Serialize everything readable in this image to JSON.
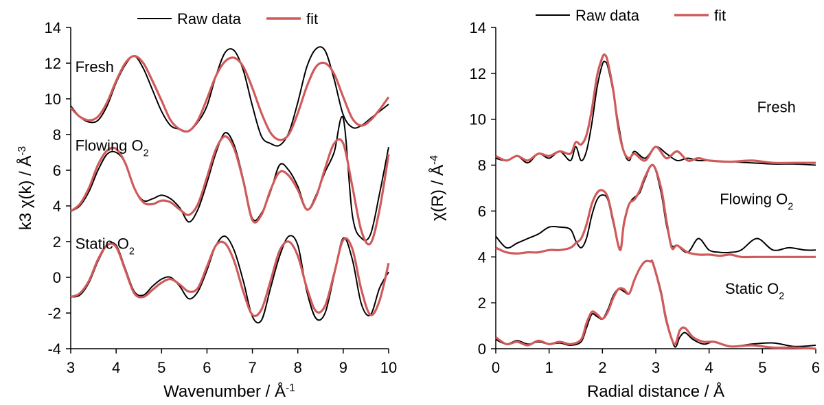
{
  "chart_data": [
    {
      "type": "line",
      "panel": "k-space",
      "xlabel": "Wavenumber / Å",
      "xlabel_sup": "-1",
      "ylabel": "k3 χ(k) / Å",
      "ylabel_sup": "-3",
      "xlim": [
        3,
        10
      ],
      "ylim": [
        -4,
        14
      ],
      "xticks": [
        3,
        4,
        5,
        6,
        7,
        8,
        9,
        10
      ],
      "yticks": [
        -4,
        -2,
        0,
        2,
        4,
        6,
        8,
        10,
        12,
        14
      ],
      "grid": false,
      "legend": {
        "placement": "top-center",
        "entries": [
          "Raw data",
          "fit"
        ]
      },
      "colors": {
        "raw": "#000000",
        "fit": "#d05a5a"
      },
      "annotations": [
        {
          "text": "Fresh",
          "sub": "",
          "x": 3.1,
          "y": 11.5
        },
        {
          "text": "Flowing O",
          "sub": "2",
          "x": 3.1,
          "y": 7.1
        },
        {
          "text": "Static O",
          "sub": "2",
          "x": 3.1,
          "y": 1.6
        }
      ],
      "series": [
        {
          "name": "Raw data",
          "group": "Fresh",
          "x": [
            3.0,
            3.2,
            3.4,
            3.6,
            3.8,
            4.0,
            4.2,
            4.4,
            4.6,
            4.8,
            5.0,
            5.2,
            5.4,
            5.6,
            5.8,
            6.0,
            6.2,
            6.4,
            6.6,
            6.8,
            7.0,
            7.2,
            7.4,
            7.6,
            7.8,
            8.0,
            8.2,
            8.4,
            8.6,
            8.8,
            9.0,
            9.2,
            9.4,
            9.6,
            9.8,
            10.0
          ],
          "y": [
            9.6,
            9.0,
            8.7,
            8.8,
            9.6,
            10.9,
            11.9,
            12.4,
            11.7,
            10.5,
            9.3,
            8.5,
            8.3,
            8.2,
            8.7,
            9.6,
            11.3,
            12.6,
            12.7,
            11.6,
            9.6,
            7.9,
            7.5,
            7.4,
            8.1,
            9.8,
            11.8,
            12.8,
            12.7,
            11.1,
            9.1,
            8.4,
            8.5,
            8.9,
            9.3,
            9.7
          ]
        },
        {
          "name": "fit",
          "group": "Fresh",
          "x": [
            3.0,
            3.2,
            3.4,
            3.6,
            3.8,
            4.0,
            4.2,
            4.4,
            4.6,
            4.8,
            5.0,
            5.2,
            5.4,
            5.6,
            5.8,
            6.0,
            6.2,
            6.4,
            6.6,
            6.8,
            7.0,
            7.2,
            7.4,
            7.6,
            7.8,
            8.0,
            8.2,
            8.4,
            8.6,
            8.8,
            9.0,
            9.2,
            9.4,
            9.6,
            9.8,
            10.0
          ],
          "y": [
            9.5,
            9.0,
            8.8,
            9.0,
            9.8,
            11.0,
            12.0,
            12.4,
            12.0,
            11.0,
            9.9,
            8.8,
            8.3,
            8.2,
            8.8,
            10.0,
            11.3,
            12.1,
            12.3,
            11.8,
            10.6,
            9.2,
            8.1,
            7.7,
            8.0,
            9.2,
            10.7,
            11.8,
            12.0,
            11.4,
            10.1,
            8.9,
            8.5,
            8.8,
            9.4,
            10.1
          ]
        },
        {
          "name": "Raw data",
          "group": "Flowing O2",
          "x": [
            3.0,
            3.2,
            3.4,
            3.6,
            3.8,
            4.0,
            4.2,
            4.4,
            4.6,
            4.8,
            5.0,
            5.2,
            5.4,
            5.6,
            5.8,
            6.0,
            6.2,
            6.4,
            6.6,
            6.8,
            7.0,
            7.2,
            7.4,
            7.6,
            7.8,
            8.0,
            8.2,
            8.4,
            8.6,
            8.8,
            9.0,
            9.2,
            9.4,
            9.6,
            9.8,
            10.0
          ],
          "y": [
            3.7,
            4.0,
            4.8,
            6.0,
            6.9,
            7.0,
            6.4,
            5.0,
            4.3,
            4.4,
            4.6,
            4.4,
            3.9,
            3.1,
            3.8,
            5.3,
            7.0,
            8.1,
            7.4,
            5.5,
            3.3,
            3.6,
            4.8,
            6.3,
            6.0,
            5.1,
            3.8,
            4.6,
            5.9,
            7.0,
            8.9,
            3.5,
            2.2,
            2.4,
            4.7,
            7.3
          ]
        },
        {
          "name": "fit",
          "group": "Flowing O2",
          "x": [
            3.0,
            3.2,
            3.4,
            3.6,
            3.8,
            4.0,
            4.2,
            4.4,
            4.6,
            4.8,
            5.0,
            5.2,
            5.4,
            5.6,
            5.8,
            6.0,
            6.2,
            6.4,
            6.6,
            6.8,
            7.0,
            7.2,
            7.4,
            7.6,
            7.8,
            8.0,
            8.2,
            8.4,
            8.6,
            8.8,
            9.0,
            9.2,
            9.4,
            9.6,
            9.8,
            10.0
          ],
          "y": [
            3.7,
            4.1,
            5.0,
            6.3,
            7.1,
            7.2,
            6.4,
            5.0,
            4.2,
            4.1,
            4.3,
            4.2,
            3.8,
            3.5,
            4.1,
            5.6,
            7.2,
            7.9,
            7.2,
            5.4,
            3.2,
            3.5,
            4.9,
            5.9,
            5.7,
            4.9,
            3.8,
            4.5,
            6.1,
            7.5,
            7.5,
            5.1,
            2.6,
            1.9,
            3.8,
            6.9
          ]
        },
        {
          "name": "Raw data",
          "group": "Static O2",
          "x": [
            3.0,
            3.2,
            3.4,
            3.6,
            3.8,
            4.0,
            4.2,
            4.4,
            4.6,
            4.8,
            5.0,
            5.2,
            5.4,
            5.6,
            5.8,
            6.0,
            6.2,
            6.4,
            6.6,
            6.8,
            7.0,
            7.2,
            7.4,
            7.6,
            7.8,
            8.0,
            8.2,
            8.4,
            8.6,
            8.8,
            9.0,
            9.2,
            9.4,
            9.6,
            9.8,
            10.0
          ],
          "y": [
            -1.1,
            -1.0,
            -0.3,
            0.9,
            1.8,
            1.8,
            0.5,
            -0.8,
            -1.0,
            -0.5,
            -0.1,
            0.0,
            -0.5,
            -1.2,
            -0.8,
            0.4,
            1.8,
            2.3,
            1.5,
            -0.2,
            -2.2,
            -2.4,
            -0.6,
            1.2,
            2.3,
            1.8,
            -0.8,
            -2.3,
            -2.0,
            0.1,
            2.2,
            1.0,
            -1.5,
            -2.1,
            -0.6,
            0.3
          ]
        },
        {
          "name": "fit",
          "group": "Static O2",
          "x": [
            3.0,
            3.2,
            3.4,
            3.6,
            3.8,
            4.0,
            4.2,
            4.4,
            4.6,
            4.8,
            5.0,
            5.2,
            5.4,
            5.6,
            5.8,
            6.0,
            6.2,
            6.4,
            6.6,
            6.8,
            7.0,
            7.2,
            7.4,
            7.6,
            7.8,
            8.0,
            8.2,
            8.4,
            8.6,
            8.8,
            9.0,
            9.2,
            9.4,
            9.6,
            9.8,
            10.0
          ],
          "y": [
            -1.1,
            -0.9,
            -0.2,
            1.0,
            1.8,
            1.7,
            0.4,
            -0.9,
            -1.1,
            -0.7,
            -0.3,
            -0.1,
            -0.4,
            -0.8,
            -0.6,
            0.6,
            1.8,
            1.9,
            0.9,
            -0.8,
            -2.1,
            -1.8,
            -0.2,
            1.5,
            2.0,
            1.2,
            -0.6,
            -1.9,
            -1.6,
            0.2,
            2.1,
            1.6,
            -0.7,
            -2.1,
            -1.3,
            0.8
          ]
        }
      ]
    },
    {
      "type": "line",
      "panel": "R-space",
      "xlabel": "Radial distance / Å",
      "xlabel_sup": "",
      "ylabel": "χ(R) / Å",
      "ylabel_sup": "-4",
      "xlim": [
        0,
        6
      ],
      "ylim": [
        0,
        14
      ],
      "xticks": [
        0,
        1,
        2,
        3,
        4,
        5,
        6
      ],
      "yticks": [
        0,
        2,
        4,
        6,
        8,
        10,
        12,
        14
      ],
      "grid": false,
      "legend": {
        "placement": "top-center",
        "entries": [
          "Raw data",
          "fit"
        ]
      },
      "colors": {
        "raw": "#000000",
        "fit": "#d05a5a"
      },
      "annotations": [
        {
          "text": "Fresh",
          "sub": "",
          "x": 4.9,
          "y": 10.3
        },
        {
          "text": "Flowing O",
          "sub": "2",
          "x": 4.2,
          "y": 6.3
        },
        {
          "text": "Static O",
          "sub": "2",
          "x": 4.3,
          "y": 2.4
        }
      ],
      "series": [
        {
          "name": "Raw data",
          "group": "Fresh",
          "x": [
            0.0,
            0.2,
            0.4,
            0.6,
            0.8,
            1.0,
            1.2,
            1.4,
            1.5,
            1.6,
            1.7,
            1.8,
            1.9,
            2.0,
            2.05,
            2.1,
            2.2,
            2.3,
            2.4,
            2.5,
            2.6,
            2.8,
            3.0,
            3.2,
            3.4,
            3.6,
            3.8,
            4.0,
            4.4,
            4.8,
            5.2,
            5.6,
            6.0
          ],
          "y": [
            8.3,
            8.2,
            8.4,
            8.1,
            8.5,
            8.3,
            8.6,
            8.2,
            8.8,
            8.2,
            8.6,
            9.8,
            11.4,
            12.4,
            12.5,
            12.3,
            11.2,
            9.8,
            8.6,
            8.2,
            8.6,
            8.3,
            8.8,
            8.5,
            8.2,
            8.3,
            8.2,
            8.2,
            8.15,
            8.1,
            8.05,
            8.05,
            8.0
          ]
        },
        {
          "name": "fit",
          "group": "Fresh",
          "x": [
            0.0,
            0.2,
            0.4,
            0.6,
            0.8,
            1.0,
            1.2,
            1.4,
            1.5,
            1.6,
            1.7,
            1.8,
            1.9,
            2.0,
            2.05,
            2.1,
            2.2,
            2.3,
            2.4,
            2.5,
            2.6,
            2.8,
            3.0,
            3.2,
            3.4,
            3.6,
            3.8,
            4.0,
            4.4,
            4.8,
            5.2,
            5.6,
            6.0
          ],
          "y": [
            8.4,
            8.2,
            8.4,
            8.2,
            8.5,
            8.4,
            8.6,
            8.5,
            9.0,
            8.9,
            9.3,
            10.4,
            11.9,
            12.7,
            12.8,
            12.5,
            11.3,
            9.6,
            8.6,
            8.3,
            8.5,
            8.2,
            8.8,
            8.3,
            8.6,
            8.2,
            8.3,
            8.2,
            8.15,
            8.2,
            8.1,
            8.1,
            8.1
          ]
        },
        {
          "name": "Raw data",
          "group": "Flowing O2",
          "x": [
            0.0,
            0.2,
            0.4,
            0.6,
            0.8,
            1.0,
            1.2,
            1.4,
            1.5,
            1.6,
            1.7,
            1.8,
            1.9,
            2.0,
            2.1,
            2.2,
            2.33,
            2.4,
            2.5,
            2.6,
            2.7,
            2.8,
            2.95,
            3.1,
            3.2,
            3.3,
            3.4,
            3.6,
            3.8,
            4.0,
            4.2,
            4.4,
            4.6,
            4.9,
            5.2,
            5.5,
            5.8,
            6.0
          ],
          "y": [
            4.9,
            4.4,
            4.6,
            4.8,
            5.0,
            5.3,
            5.3,
            5.2,
            4.7,
            4.4,
            4.8,
            5.8,
            6.5,
            6.7,
            6.5,
            5.5,
            4.4,
            5.5,
            6.3,
            6.6,
            6.8,
            7.4,
            8.0,
            6.8,
            5.4,
            4.5,
            4.5,
            4.2,
            4.8,
            4.3,
            4.2,
            4.2,
            4.3,
            4.8,
            4.3,
            4.4,
            4.3,
            4.3
          ]
        },
        {
          "name": "fit",
          "group": "Flowing O2",
          "x": [
            0.0,
            0.2,
            0.4,
            0.6,
            0.8,
            1.0,
            1.2,
            1.4,
            1.5,
            1.6,
            1.7,
            1.8,
            1.9,
            2.0,
            2.1,
            2.2,
            2.33,
            2.4,
            2.5,
            2.6,
            2.7,
            2.8,
            2.95,
            3.1,
            3.2,
            3.3,
            3.4,
            3.6,
            3.8,
            4.0,
            4.2,
            4.4,
            4.6,
            4.9,
            5.2,
            5.5,
            5.8,
            6.0
          ],
          "y": [
            4.4,
            4.2,
            4.15,
            4.2,
            4.2,
            4.3,
            4.3,
            4.4,
            4.6,
            4.8,
            5.4,
            6.3,
            6.8,
            6.9,
            6.6,
            5.6,
            4.3,
            5.4,
            6.3,
            6.5,
            6.9,
            7.5,
            8.0,
            7.0,
            5.6,
            4.4,
            4.5,
            4.2,
            4.1,
            4.1,
            4.05,
            4.1,
            4.0,
            4.0,
            4.0,
            4.0,
            4.0,
            4.0
          ]
        },
        {
          "name": "Raw data",
          "group": "Static O2",
          "x": [
            0.0,
            0.2,
            0.4,
            0.6,
            0.8,
            1.0,
            1.2,
            1.4,
            1.6,
            1.7,
            1.8,
            1.9,
            2.0,
            2.1,
            2.2,
            2.3,
            2.4,
            2.5,
            2.6,
            2.7,
            2.8,
            2.9,
            2.95,
            3.1,
            3.2,
            3.35,
            3.45,
            3.55,
            3.7,
            3.9,
            4.1,
            4.4,
            4.8,
            5.2,
            5.6,
            6.0
          ],
          "y": [
            0.4,
            0.2,
            0.35,
            0.2,
            0.3,
            0.2,
            0.25,
            0.15,
            0.3,
            0.9,
            1.5,
            1.4,
            1.3,
            1.7,
            2.3,
            2.6,
            2.5,
            2.4,
            3.0,
            3.5,
            3.8,
            3.8,
            3.75,
            2.5,
            1.3,
            0.1,
            0.5,
            0.7,
            0.4,
            0.2,
            0.3,
            0.1,
            0.2,
            0.25,
            0.1,
            0.15
          ]
        },
        {
          "name": "fit",
          "group": "Static O2",
          "x": [
            0.0,
            0.2,
            0.4,
            0.6,
            0.8,
            1.0,
            1.2,
            1.4,
            1.6,
            1.7,
            1.8,
            1.9,
            2.0,
            2.1,
            2.2,
            2.3,
            2.4,
            2.5,
            2.6,
            2.7,
            2.8,
            2.9,
            2.95,
            3.1,
            3.2,
            3.35,
            3.45,
            3.55,
            3.7,
            3.9,
            4.1,
            4.4,
            4.8,
            5.2,
            5.6,
            6.0
          ],
          "y": [
            0.5,
            0.2,
            0.3,
            0.15,
            0.35,
            0.2,
            0.3,
            0.2,
            0.4,
            1.1,
            1.6,
            1.5,
            1.3,
            1.6,
            2.2,
            2.6,
            2.6,
            2.4,
            3.0,
            3.5,
            3.8,
            3.8,
            3.7,
            2.4,
            1.2,
            0.2,
            0.8,
            0.9,
            0.5,
            0.3,
            0.3,
            0.1,
            0.15,
            0.05,
            0.05,
            0.0
          ]
        }
      ]
    }
  ]
}
